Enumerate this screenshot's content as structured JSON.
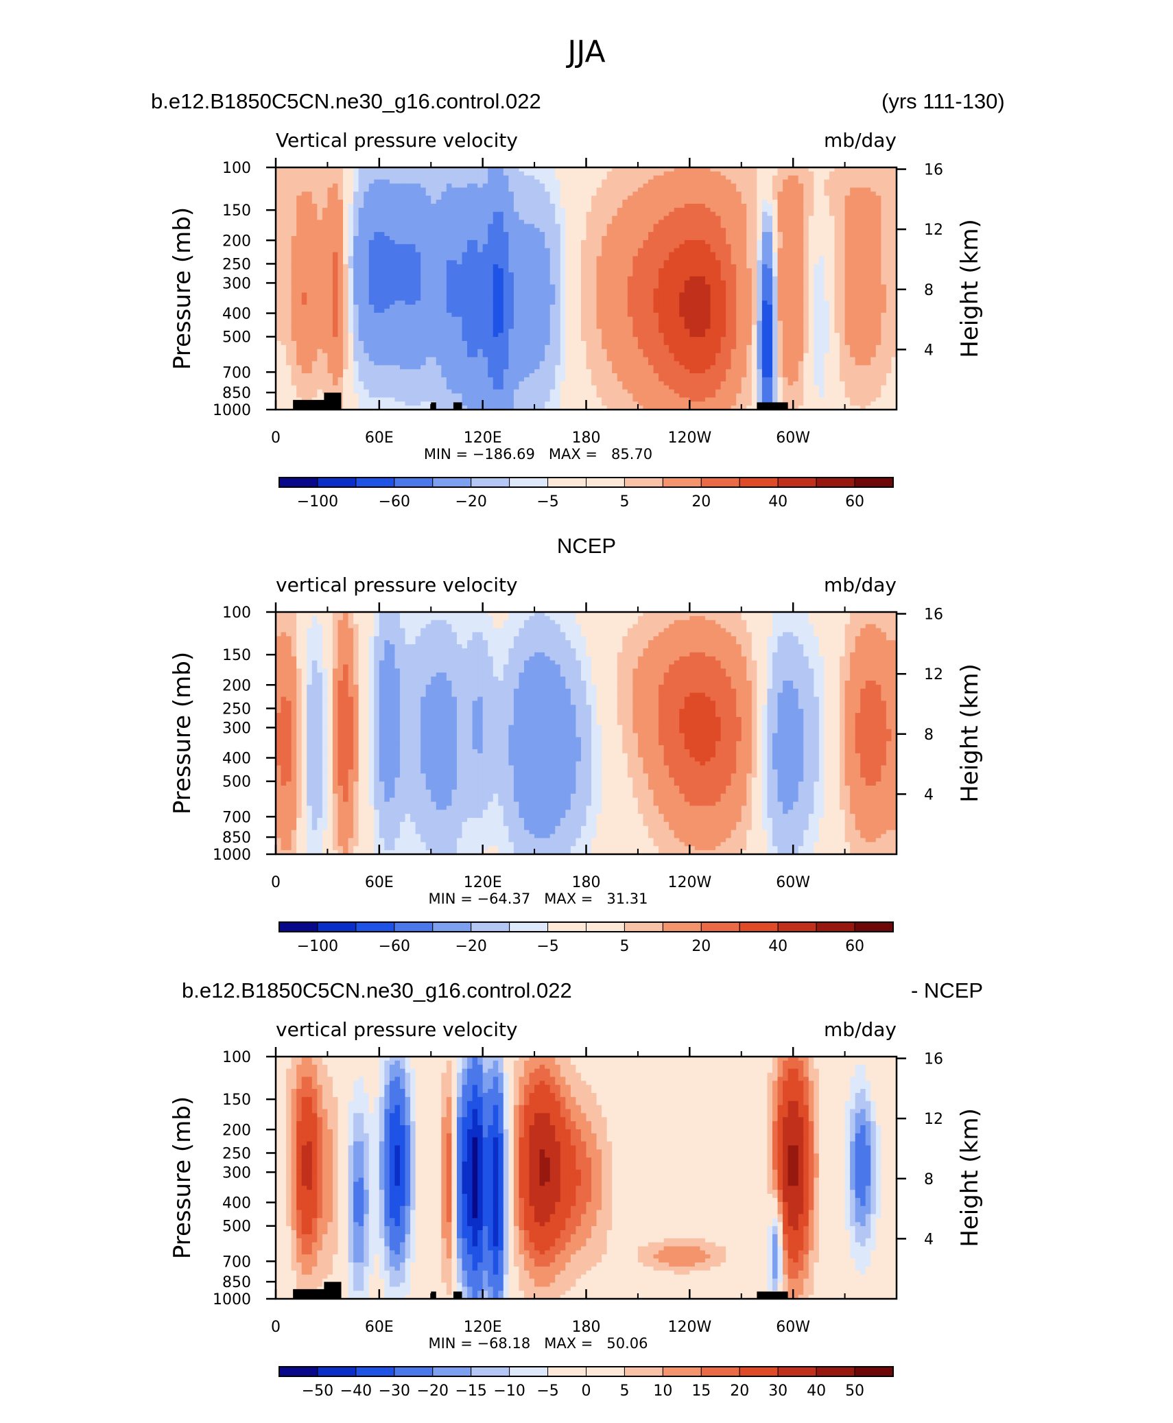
{
  "page": {
    "title": "JJA",
    "header_left": "b.e12.B1850C5CN.ne30_g16.control.022",
    "header_right": "(yrs 111-130)",
    "header_mid": "NCEP",
    "diff_left": "b.e12.B1850C5CN.ne30_g16.control.022",
    "diff_right": "- NCEP"
  },
  "chart_data": [
    {
      "type": "heatmap",
      "title": "Vertical pressure velocity",
      "units": "mb/day",
      "ylabel": "Pressure (mb)",
      "y2label": "Height (km)",
      "xticks": [
        "0",
        "60E",
        "120E",
        "180",
        "120W",
        "60W"
      ],
      "yticks": [
        "100",
        "150",
        "200",
        "250",
        "300",
        "400",
        "500",
        "700",
        "850",
        "1000"
      ],
      "y2ticks": [
        "16",
        "12",
        "8",
        "4"
      ],
      "stats": "MIN = −186.69   MAX =   85.70",
      "colorbar": [
        "−100",
        "−60",
        "−20",
        "−5",
        "5",
        "20",
        "40",
        "60"
      ]
    },
    {
      "type": "heatmap",
      "title": "vertical pressure velocity",
      "units": "mb/day",
      "ylabel": "Pressure (mb)",
      "y2label": "Height (km)",
      "xticks": [
        "0",
        "60E",
        "120E",
        "180",
        "120W",
        "60W"
      ],
      "yticks": [
        "100",
        "150",
        "200",
        "250",
        "300",
        "400",
        "500",
        "700",
        "850",
        "1000"
      ],
      "y2ticks": [
        "16",
        "12",
        "8",
        "4"
      ],
      "stats": "MIN = −64.37   MAX =   31.31",
      "colorbar": [
        "−100",
        "−60",
        "−20",
        "−5",
        "5",
        "20",
        "40",
        "60"
      ]
    },
    {
      "type": "heatmap",
      "title": "vertical pressure velocity",
      "units": "mb/day",
      "ylabel": "Pressure (mb)",
      "y2label": "Height (km)",
      "xticks": [
        "0",
        "60E",
        "120E",
        "180",
        "120W",
        "60W"
      ],
      "yticks": [
        "100",
        "150",
        "200",
        "250",
        "300",
        "400",
        "500",
        "700",
        "850",
        "1000"
      ],
      "y2ticks": [
        "16",
        "12",
        "8",
        "4"
      ],
      "stats": "MIN = −68.18   MAX =   50.06",
      "colorbar": [
        "−50",
        "−40",
        "−30",
        "−20",
        "−15",
        "−10",
        "−5",
        "0",
        "5",
        "10",
        "15",
        "20",
        "30",
        "40",
        "50"
      ]
    }
  ],
  "colors": {
    "palette": [
      "#08088a",
      "#0a2fc8",
      "#1f53e6",
      "#4a78ea",
      "#7d9fef",
      "#b3c6f4",
      "#dde8fa",
      "#fde8d8",
      "#f9c2a6",
      "#f3946c",
      "#ea6a45",
      "#df4a27",
      "#c0301a",
      "#96180f",
      "#6e0808"
    ]
  }
}
